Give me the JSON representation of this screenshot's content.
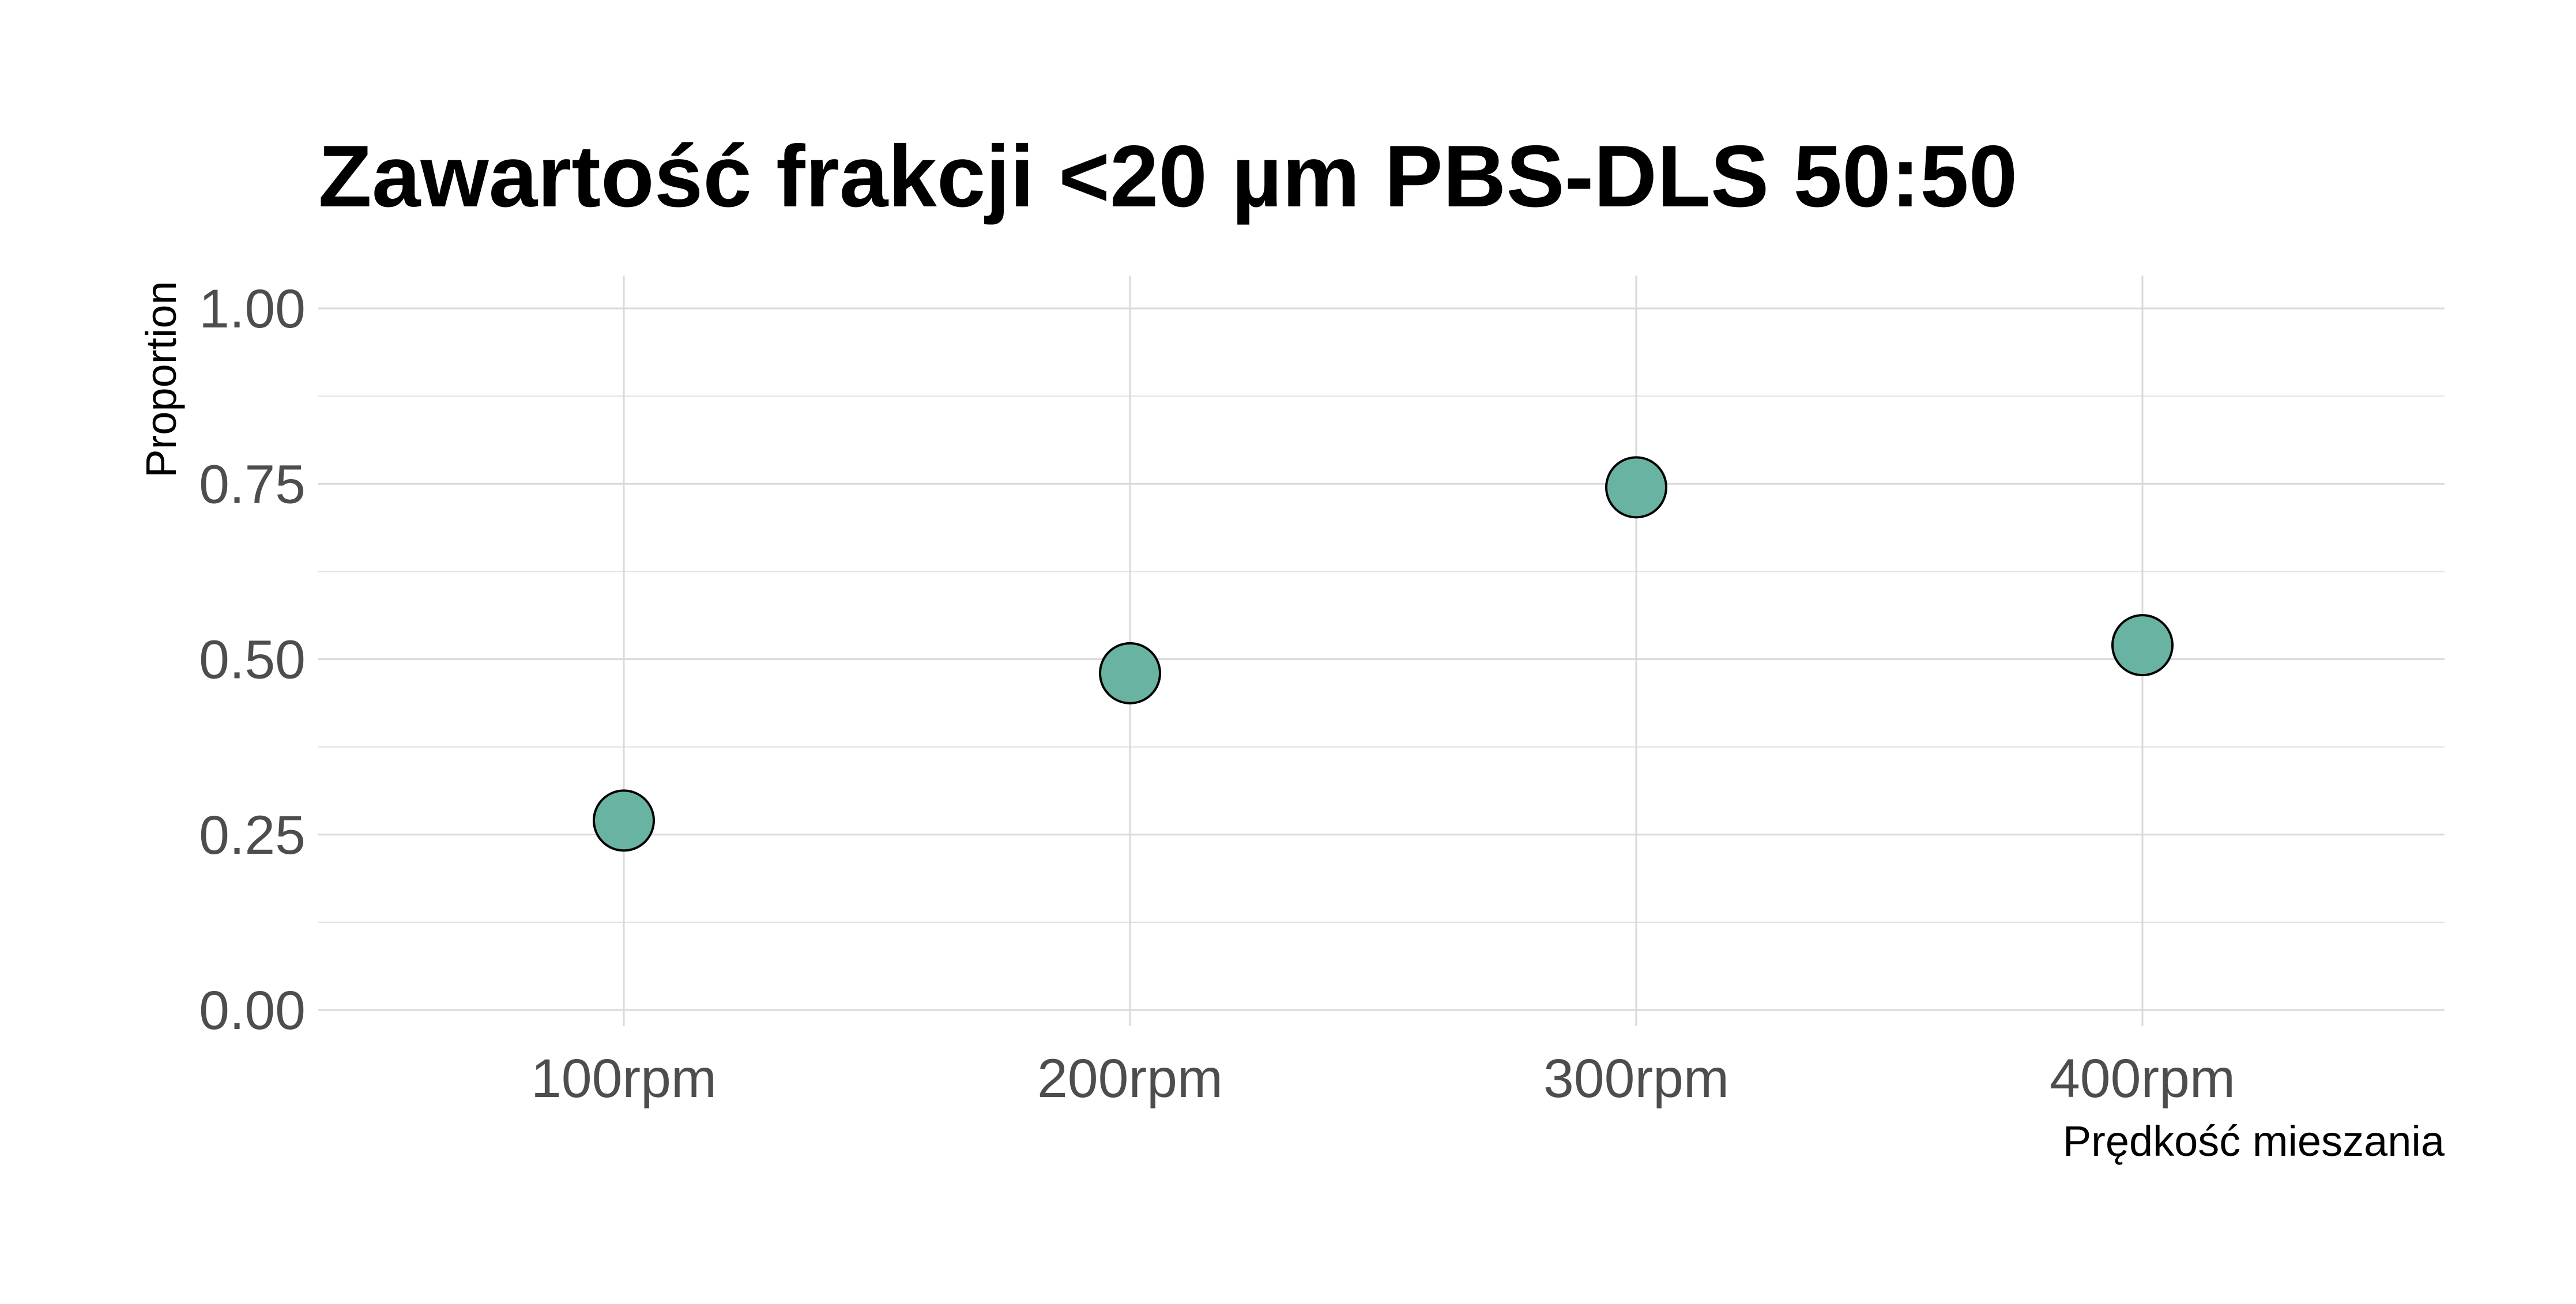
{
  "chart_data": {
    "type": "scatter",
    "title": "Zawartość frakcji <20 µm PBS-DLS 50:50",
    "xlabel": "Prędkość mieszania",
    "ylabel": "Proportion",
    "categories": [
      "100rpm",
      "200rpm",
      "300rpm",
      "400rpm"
    ],
    "values": [
      0.27,
      0.48,
      0.745,
      0.52
    ],
    "ylim": [
      0,
      1
    ],
    "yticks": [
      0,
      0.25,
      0.5,
      0.75,
      1
    ],
    "ytick_labels": [
      "0.00",
      "0.25",
      "0.50",
      "0.75",
      "1.00"
    ],
    "grid": true,
    "legend": "none",
    "colors": {
      "point_fill": "#69b3a2",
      "point_stroke": "#000000",
      "grid": "#d9d9d9",
      "tick_text": "#4d4d4d"
    }
  }
}
